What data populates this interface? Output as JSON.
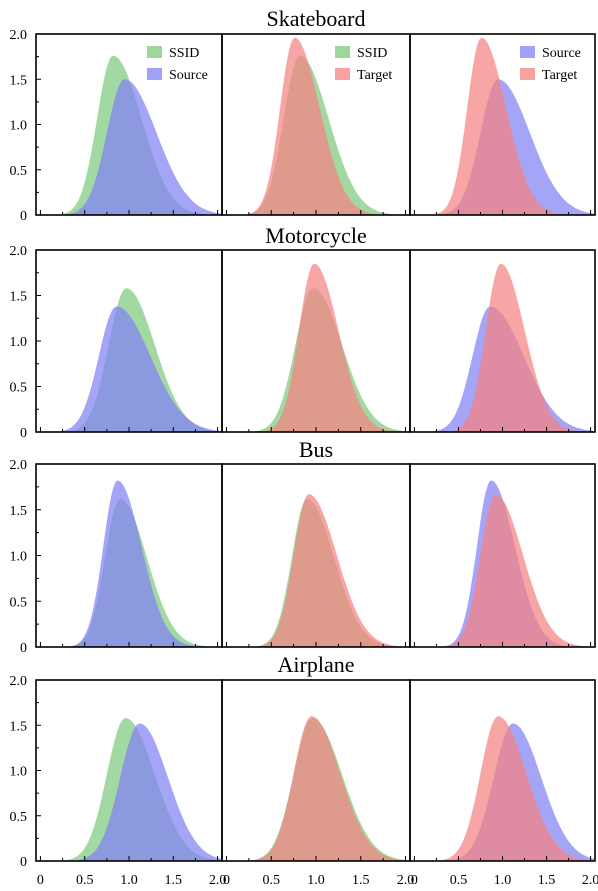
{
  "chart_data": {
    "type": "area",
    "description_free": true,
    "x_ticks": [
      "0",
      "0.5",
      "1.0",
      "1.5",
      "2.0"
    ],
    "y_ticks": [
      "0",
      "0.5",
      "1.0",
      "1.5",
      "2.0"
    ],
    "xlim": [
      -0.05,
      2.05
    ],
    "ylim": [
      0,
      2.0
    ],
    "colors": {
      "SSID": "#7ec97e",
      "Source": "#8282f5",
      "Target": "#f58282"
    },
    "rows": [
      {
        "title": "Skateboard",
        "dists": {
          "SSID": {
            "peak": 0.82,
            "height": 1.76,
            "sigma_left": 0.18,
            "sigma_right": 0.32
          },
          "Source": {
            "peak": 0.95,
            "height": 1.5,
            "sigma_left": 0.2,
            "sigma_right": 0.36
          },
          "Target": {
            "peak": 0.76,
            "height": 1.96,
            "sigma_left": 0.16,
            "sigma_right": 0.28
          }
        },
        "panels": [
          {
            "series": [
              "SSID",
              "Source"
            ],
            "legend": [
              "SSID",
              "Source"
            ]
          },
          {
            "series": [
              "SSID",
              "Target"
            ],
            "legend": [
              "SSID",
              "Target"
            ]
          },
          {
            "series": [
              "Source",
              "Target"
            ],
            "legend": [
              "Source",
              "Target"
            ]
          }
        ]
      },
      {
        "title": "Motorcycle",
        "dists": {
          "SSID": {
            "peak": 0.97,
            "height": 1.58,
            "sigma_left": 0.2,
            "sigma_right": 0.32
          },
          "Source": {
            "peak": 0.86,
            "height": 1.38,
            "sigma_left": 0.2,
            "sigma_right": 0.38
          },
          "Target": {
            "peak": 0.98,
            "height": 1.85,
            "sigma_left": 0.17,
            "sigma_right": 0.27
          }
        },
        "panels": [
          {
            "series": [
              "SSID",
              "Source"
            ],
            "legend": []
          },
          {
            "series": [
              "SSID",
              "Target"
            ],
            "legend": []
          },
          {
            "series": [
              "Source",
              "Target"
            ],
            "legend": []
          }
        ]
      },
      {
        "title": "Bus",
        "dists": {
          "SSID": {
            "peak": 0.9,
            "height": 1.62,
            "sigma_left": 0.17,
            "sigma_right": 0.3
          },
          "Source": {
            "peak": 0.87,
            "height": 1.82,
            "sigma_left": 0.16,
            "sigma_right": 0.27
          },
          "Target": {
            "peak": 0.92,
            "height": 1.67,
            "sigma_left": 0.17,
            "sigma_right": 0.31
          }
        },
        "panels": [
          {
            "series": [
              "SSID",
              "Source"
            ],
            "legend": []
          },
          {
            "series": [
              "SSID",
              "Target"
            ],
            "legend": []
          },
          {
            "series": [
              "Source",
              "Target"
            ],
            "legend": []
          }
        ]
      },
      {
        "title": "Airplane",
        "dists": {
          "SSID": {
            "peak": 0.96,
            "height": 1.58,
            "sigma_left": 0.21,
            "sigma_right": 0.33
          },
          "Source": {
            "peak": 1.12,
            "height": 1.52,
            "sigma_left": 0.22,
            "sigma_right": 0.32
          },
          "Target": {
            "peak": 0.95,
            "height": 1.6,
            "sigma_left": 0.2,
            "sigma_right": 0.32
          }
        },
        "panels": [
          {
            "series": [
              "SSID",
              "Source"
            ],
            "legend": []
          },
          {
            "series": [
              "SSID",
              "Target"
            ],
            "legend": []
          },
          {
            "series": [
              "Source",
              "Target"
            ],
            "legend": []
          }
        ]
      }
    ]
  }
}
